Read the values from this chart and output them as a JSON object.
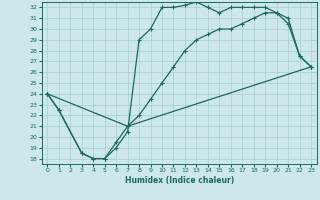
{
  "xlabel": "Humidex (Indice chaleur)",
  "xlim": [
    -0.5,
    23.5
  ],
  "ylim": [
    17.5,
    32.5
  ],
  "xticks": [
    0,
    1,
    2,
    3,
    4,
    5,
    6,
    7,
    8,
    9,
    10,
    11,
    12,
    13,
    14,
    15,
    16,
    17,
    18,
    19,
    20,
    21,
    22,
    23
  ],
  "yticks": [
    18,
    19,
    20,
    21,
    22,
    23,
    24,
    25,
    26,
    27,
    28,
    29,
    30,
    31,
    32
  ],
  "bg_color": "#cde8e8",
  "grid_color": "#aacece",
  "line_color": "#1a6b5a",
  "line1_x": [
    0,
    1,
    3,
    4,
    5,
    6,
    7,
    8,
    9,
    10,
    11,
    12,
    13,
    14,
    15,
    16,
    17,
    18,
    19,
    20,
    21,
    22,
    23
  ],
  "line1_y": [
    24.0,
    22.5,
    18.5,
    18.0,
    18.0,
    19.0,
    20.5,
    29.0,
    30.0,
    32.0,
    32.0,
    32.2,
    32.5,
    32.0,
    31.5,
    32.0,
    32.0,
    32.0,
    32.0,
    31.5,
    30.5,
    27.5,
    26.5
  ],
  "line2_x": [
    0,
    1,
    3,
    4,
    5,
    6,
    7,
    8,
    9,
    10,
    11,
    12,
    13,
    14,
    15,
    16,
    17,
    18,
    19,
    20,
    21,
    22,
    23
  ],
  "line2_y": [
    24.0,
    22.5,
    18.5,
    18.0,
    18.0,
    19.5,
    21.0,
    22.0,
    23.5,
    25.0,
    26.5,
    28.0,
    29.0,
    29.5,
    30.0,
    30.0,
    30.5,
    31.0,
    31.5,
    31.5,
    31.0,
    27.5,
    26.5
  ],
  "line3_x": [
    0,
    7,
    23
  ],
  "line3_y": [
    24.0,
    21.0,
    26.5
  ]
}
